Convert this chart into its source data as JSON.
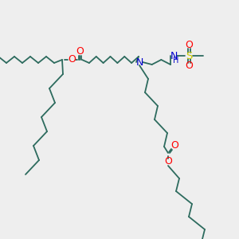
{
  "background_color": "#eeeeee",
  "bond_color": "#2d6b5e",
  "oxygen_color": "#ff0000",
  "nitrogen_color": "#0000cc",
  "sulfur_color": "#cccc00",
  "figsize": [
    3.0,
    3.0
  ],
  "dpi": 100,
  "xlim": [
    0,
    300
  ],
  "ylim": [
    0,
    300
  ]
}
